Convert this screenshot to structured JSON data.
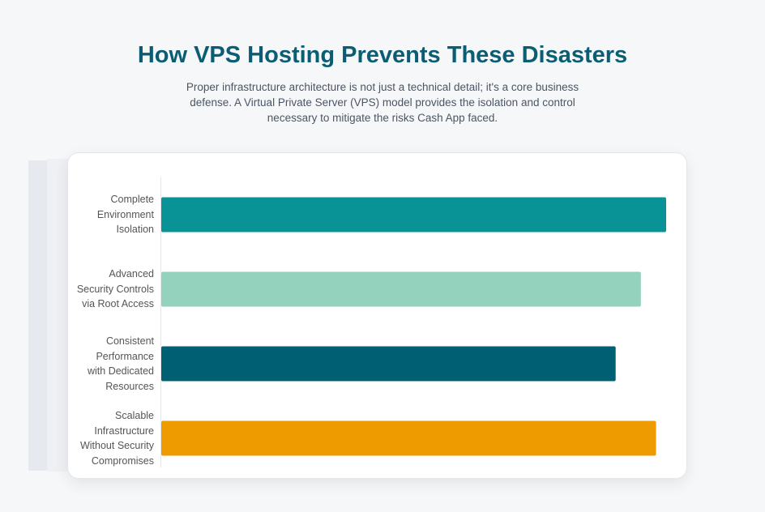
{
  "header": {
    "title": "How VPS Hosting Prevents These Disasters",
    "subtitle": "Proper infrastructure architecture is not just a technical detail; it's a core business defense. A Virtual Private Server (VPS) model provides the isolation and control necessary to mitigate the risks Cash App faced."
  },
  "chart_data": {
    "type": "bar",
    "orientation": "horizontal",
    "categories": [
      "Complete Environment Isolation",
      "Advanced Security Controls via Root Access",
      "Consistent Performance with Dedicated Resources",
      "Scalable Infrastructure Without Security Compromises"
    ],
    "values": [
      100,
      95,
      90,
      98
    ],
    "colors": [
      "#0a9396",
      "#94d2bd",
      "#005f73",
      "#ee9b00"
    ],
    "xlim": [
      0,
      100
    ],
    "grid": false
  }
}
